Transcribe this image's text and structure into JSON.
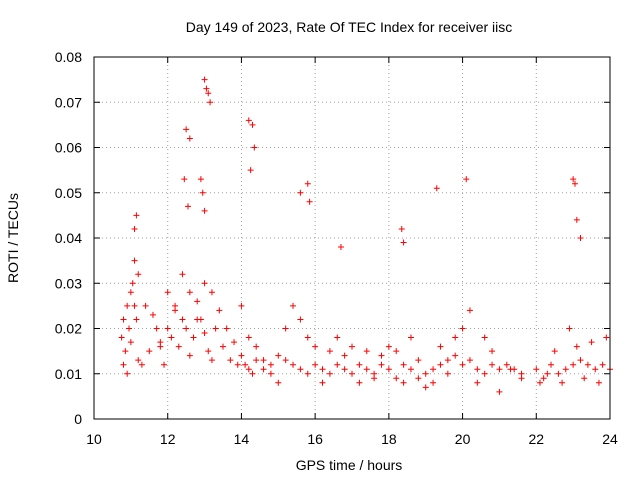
{
  "chart_data": {
    "type": "scatter",
    "title": "Day 149 of 2023, Rate Of TEC Index for receiver iisc",
    "xlabel": "GPS time / hours",
    "ylabel": "ROTI / TECUs",
    "xlim": [
      10,
      24
    ],
    "ylim": [
      0,
      0.08
    ],
    "x_ticks": [
      "10",
      "12",
      "14",
      "16",
      "18",
      "20",
      "22",
      "24"
    ],
    "y_ticks": [
      "0",
      "0.01",
      "0.02",
      "0.03",
      "0.04",
      "0.05",
      "0.06",
      "0.07",
      "0.08"
    ],
    "grid": true,
    "legend": "none",
    "marker": "plus",
    "color": "#ff0000",
    "series": [
      {
        "x": [
          10.75,
          10.8,
          10.85,
          10.9,
          10.95,
          11.0,
          11.05,
          11.1,
          11.15,
          11.2,
          11.3,
          11.5,
          11.7,
          11.8,
          11.9,
          12.0,
          12.1,
          12.2,
          12.3,
          12.4,
          12.5,
          12.6,
          12.7,
          12.8,
          12.9,
          13.0,
          13.1,
          13.2,
          13.3,
          13.5,
          13.7,
          13.9,
          14.0,
          14.1,
          14.2,
          14.3,
          14.4,
          14.6,
          14.8,
          15.0,
          15.2,
          15.4,
          15.6,
          15.8,
          16.0,
          16.2,
          16.4,
          16.6,
          16.8,
          17.0,
          17.2,
          17.4,
          17.6,
          17.8,
          18.0,
          18.2,
          18.4,
          18.6,
          18.8,
          19.0,
          19.2,
          19.4,
          19.6,
          19.8,
          20.0,
          20.2,
          20.4,
          20.6,
          20.8,
          21.0,
          21.2,
          21.4,
          21.6,
          22.0,
          22.2,
          22.4,
          22.6,
          22.8,
          23.0,
          23.2,
          23.4,
          23.6,
          23.8,
          24.0,
          10.8,
          10.9,
          11.0,
          11.1,
          11.2,
          11.4,
          11.6,
          11.8,
          12.0,
          12.2,
          12.4,
          12.6,
          12.8,
          13.0,
          13.2,
          13.4,
          13.6,
          13.8,
          14.0,
          14.2,
          14.4,
          14.6,
          14.8,
          15.0,
          15.2,
          15.4,
          15.6,
          15.8,
          16.0,
          16.2,
          16.4,
          16.6,
          16.8,
          17.0,
          17.2,
          17.4,
          17.6,
          17.8,
          18.0,
          18.2,
          18.4,
          18.6,
          18.8,
          19.0,
          19.2,
          19.4,
          19.6,
          19.8,
          20.0,
          20.2,
          20.4,
          20.6,
          20.8,
          21.0,
          21.3,
          21.6,
          22.1,
          22.3,
          22.5,
          22.7,
          22.9,
          23.1,
          23.3,
          23.5,
          23.7,
          23.9,
          12.5,
          12.6,
          13.0,
          13.05,
          13.1,
          13.15,
          14.2,
          14.3,
          14.35,
          15.6,
          15.8,
          15.85,
          16.7,
          18.35,
          18.4,
          19.3,
          20.1,
          23.0,
          23.05,
          23.1,
          23.2,
          11.15,
          11.1,
          12.45,
          12.55,
          12.9,
          12.95,
          13.0,
          14.25
        ],
        "y": [
          0.018,
          0.022,
          0.015,
          0.025,
          0.02,
          0.017,
          0.03,
          0.025,
          0.022,
          0.013,
          0.012,
          0.015,
          0.02,
          0.017,
          0.012,
          0.02,
          0.018,
          0.025,
          0.016,
          0.022,
          0.02,
          0.014,
          0.018,
          0.026,
          0.022,
          0.019,
          0.015,
          0.013,
          0.02,
          0.016,
          0.013,
          0.012,
          0.014,
          0.012,
          0.011,
          0.01,
          0.013,
          0.011,
          0.012,
          0.014,
          0.013,
          0.012,
          0.011,
          0.01,
          0.012,
          0.011,
          0.01,
          0.012,
          0.011,
          0.01,
          0.012,
          0.011,
          0.01,
          0.012,
          0.011,
          0.009,
          0.012,
          0.011,
          0.013,
          0.01,
          0.011,
          0.012,
          0.013,
          0.014,
          0.012,
          0.013,
          0.011,
          0.01,
          0.012,
          0.011,
          0.012,
          0.011,
          0.01,
          0.011,
          0.009,
          0.012,
          0.01,
          0.011,
          0.012,
          0.013,
          0.012,
          0.011,
          0.012,
          0.011,
          0.012,
          0.01,
          0.028,
          0.035,
          0.032,
          0.025,
          0.023,
          0.016,
          0.028,
          0.024,
          0.032,
          0.028,
          0.022,
          0.03,
          0.028,
          0.024,
          0.02,
          0.017,
          0.025,
          0.018,
          0.016,
          0.013,
          0.01,
          0.008,
          0.02,
          0.025,
          0.022,
          0.018,
          0.016,
          0.008,
          0.015,
          0.018,
          0.014,
          0.016,
          0.008,
          0.015,
          0.009,
          0.014,
          0.016,
          0.015,
          0.008,
          0.018,
          0.009,
          0.007,
          0.008,
          0.016,
          0.01,
          0.018,
          0.02,
          0.024,
          0.008,
          0.018,
          0.015,
          0.006,
          0.011,
          0.009,
          0.008,
          0.01,
          0.015,
          0.008,
          0.02,
          0.016,
          0.009,
          0.017,
          0.008,
          0.018,
          0.064,
          0.062,
          0.075,
          0.073,
          0.072,
          0.07,
          0.066,
          0.065,
          0.06,
          0.05,
          0.052,
          0.048,
          0.038,
          0.042,
          0.039,
          0.051,
          0.053,
          0.053,
          0.052,
          0.044,
          0.04,
          0.045,
          0.042,
          0.053,
          0.047,
          0.053,
          0.05,
          0.046,
          0.055
        ]
      }
    ]
  }
}
